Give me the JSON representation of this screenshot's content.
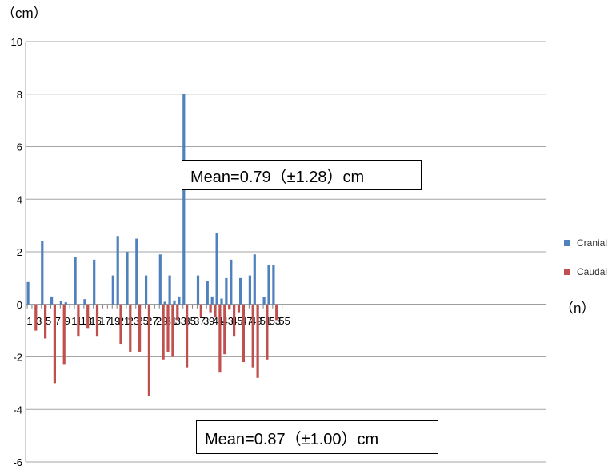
{
  "chart_data": {
    "type": "bar",
    "y_unit_label": "（cm）",
    "x_unit_label": "（n）",
    "ylim": [
      -6,
      10
    ],
    "y_ticks": [
      -6,
      -4,
      -2,
      0,
      2,
      4,
      6,
      8,
      10
    ],
    "xlim": [
      1,
      55
    ],
    "x_tick_labels": [
      "1",
      "3",
      "5",
      "7",
      "9",
      "11",
      "13",
      "15",
      "17",
      "19",
      "21",
      "23",
      "25",
      "27",
      "29",
      "31",
      "33",
      "35",
      "37",
      "39",
      "41",
      "43",
      "45",
      "47",
      "49",
      "51",
      "53",
      "55"
    ],
    "grid": true,
    "legend_position": "right",
    "colors": {
      "cranial": "#4F81BD",
      "caudal": "#C0504D"
    },
    "series": [
      {
        "name": "Cranial",
        "x": [
          1,
          4,
          6,
          8,
          9,
          11,
          13,
          15,
          19,
          20,
          22,
          24,
          26,
          29,
          30,
          31,
          32,
          33,
          34,
          37,
          39,
          40,
          41,
          42,
          43,
          44,
          46,
          48,
          49,
          51,
          52,
          53
        ],
        "values": [
          0.85,
          2.4,
          0.3,
          0.12,
          0.08,
          1.8,
          0.2,
          1.7,
          1.1,
          2.6,
          2.0,
          2.5,
          1.1,
          1.9,
          0.1,
          1.1,
          0.15,
          0.3,
          8.0,
          1.1,
          0.9,
          0.3,
          2.7,
          0.22,
          1.0,
          1.7,
          1.0,
          1.1,
          1.9,
          0.28,
          1.5,
          1.5
        ]
      },
      {
        "name": "Caudal",
        "x": [
          2,
          4,
          6,
          8,
          11,
          13,
          15,
          20,
          22,
          24,
          26,
          29,
          30,
          31,
          32,
          34,
          37,
          39,
          40,
          41,
          42,
          43,
          44,
          45,
          46,
          48,
          49,
          51,
          53
        ],
        "values": [
          -1.0,
          -1.3,
          -3.0,
          -2.3,
          -1.2,
          -0.9,
          -1.2,
          -1.5,
          -1.8,
          -1.8,
          -3.5,
          -2.1,
          -1.8,
          -2.0,
          -0.6,
          -2.4,
          -0.5,
          -0.3,
          -0.5,
          -2.6,
          -1.9,
          -0.2,
          -1.2,
          -0.3,
          -2.2,
          -2.4,
          -2.8,
          -2.1,
          -0.6
        ]
      }
    ],
    "annotations": [
      {
        "text": "Mean=0.79（±1.28）cm"
      },
      {
        "text": "Mean=0.87（±1.00）cm"
      }
    ]
  }
}
